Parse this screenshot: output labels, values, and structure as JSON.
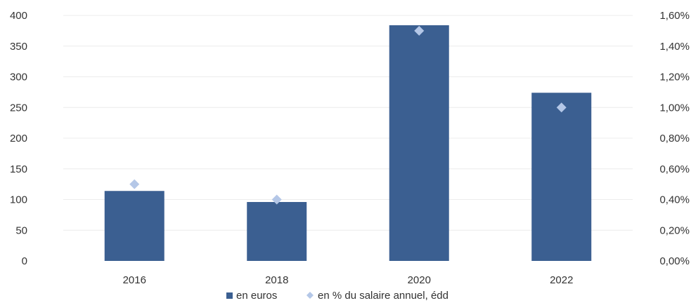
{
  "chart_data": {
    "type": "bar",
    "categories": [
      "2016",
      "2018",
      "2020",
      "2022"
    ],
    "series": [
      {
        "name": "en euros",
        "type": "bar",
        "axis": "left",
        "values": [
          114,
          96,
          384,
          274
        ],
        "color": "#3b5f91"
      },
      {
        "name": "en % du salaire annuel, édd",
        "type": "scatter",
        "axis": "right",
        "values": [
          0.5,
          0.4,
          1.5,
          1.0
        ],
        "color": "#b4c7e7"
      }
    ],
    "y_left": {
      "ylim": [
        0,
        400
      ],
      "ticks": [
        "0",
        "50",
        "100",
        "150",
        "200",
        "250",
        "300",
        "350",
        "400"
      ]
    },
    "y_right": {
      "ylim": [
        0,
        1.6
      ],
      "ticks": [
        "0,00%",
        "0,20%",
        "0,40%",
        "0,60%",
        "0,80%",
        "1,00%",
        "1,20%",
        "1,40%",
        "1,60%"
      ]
    },
    "grid": true,
    "legend_position": "bottom"
  }
}
